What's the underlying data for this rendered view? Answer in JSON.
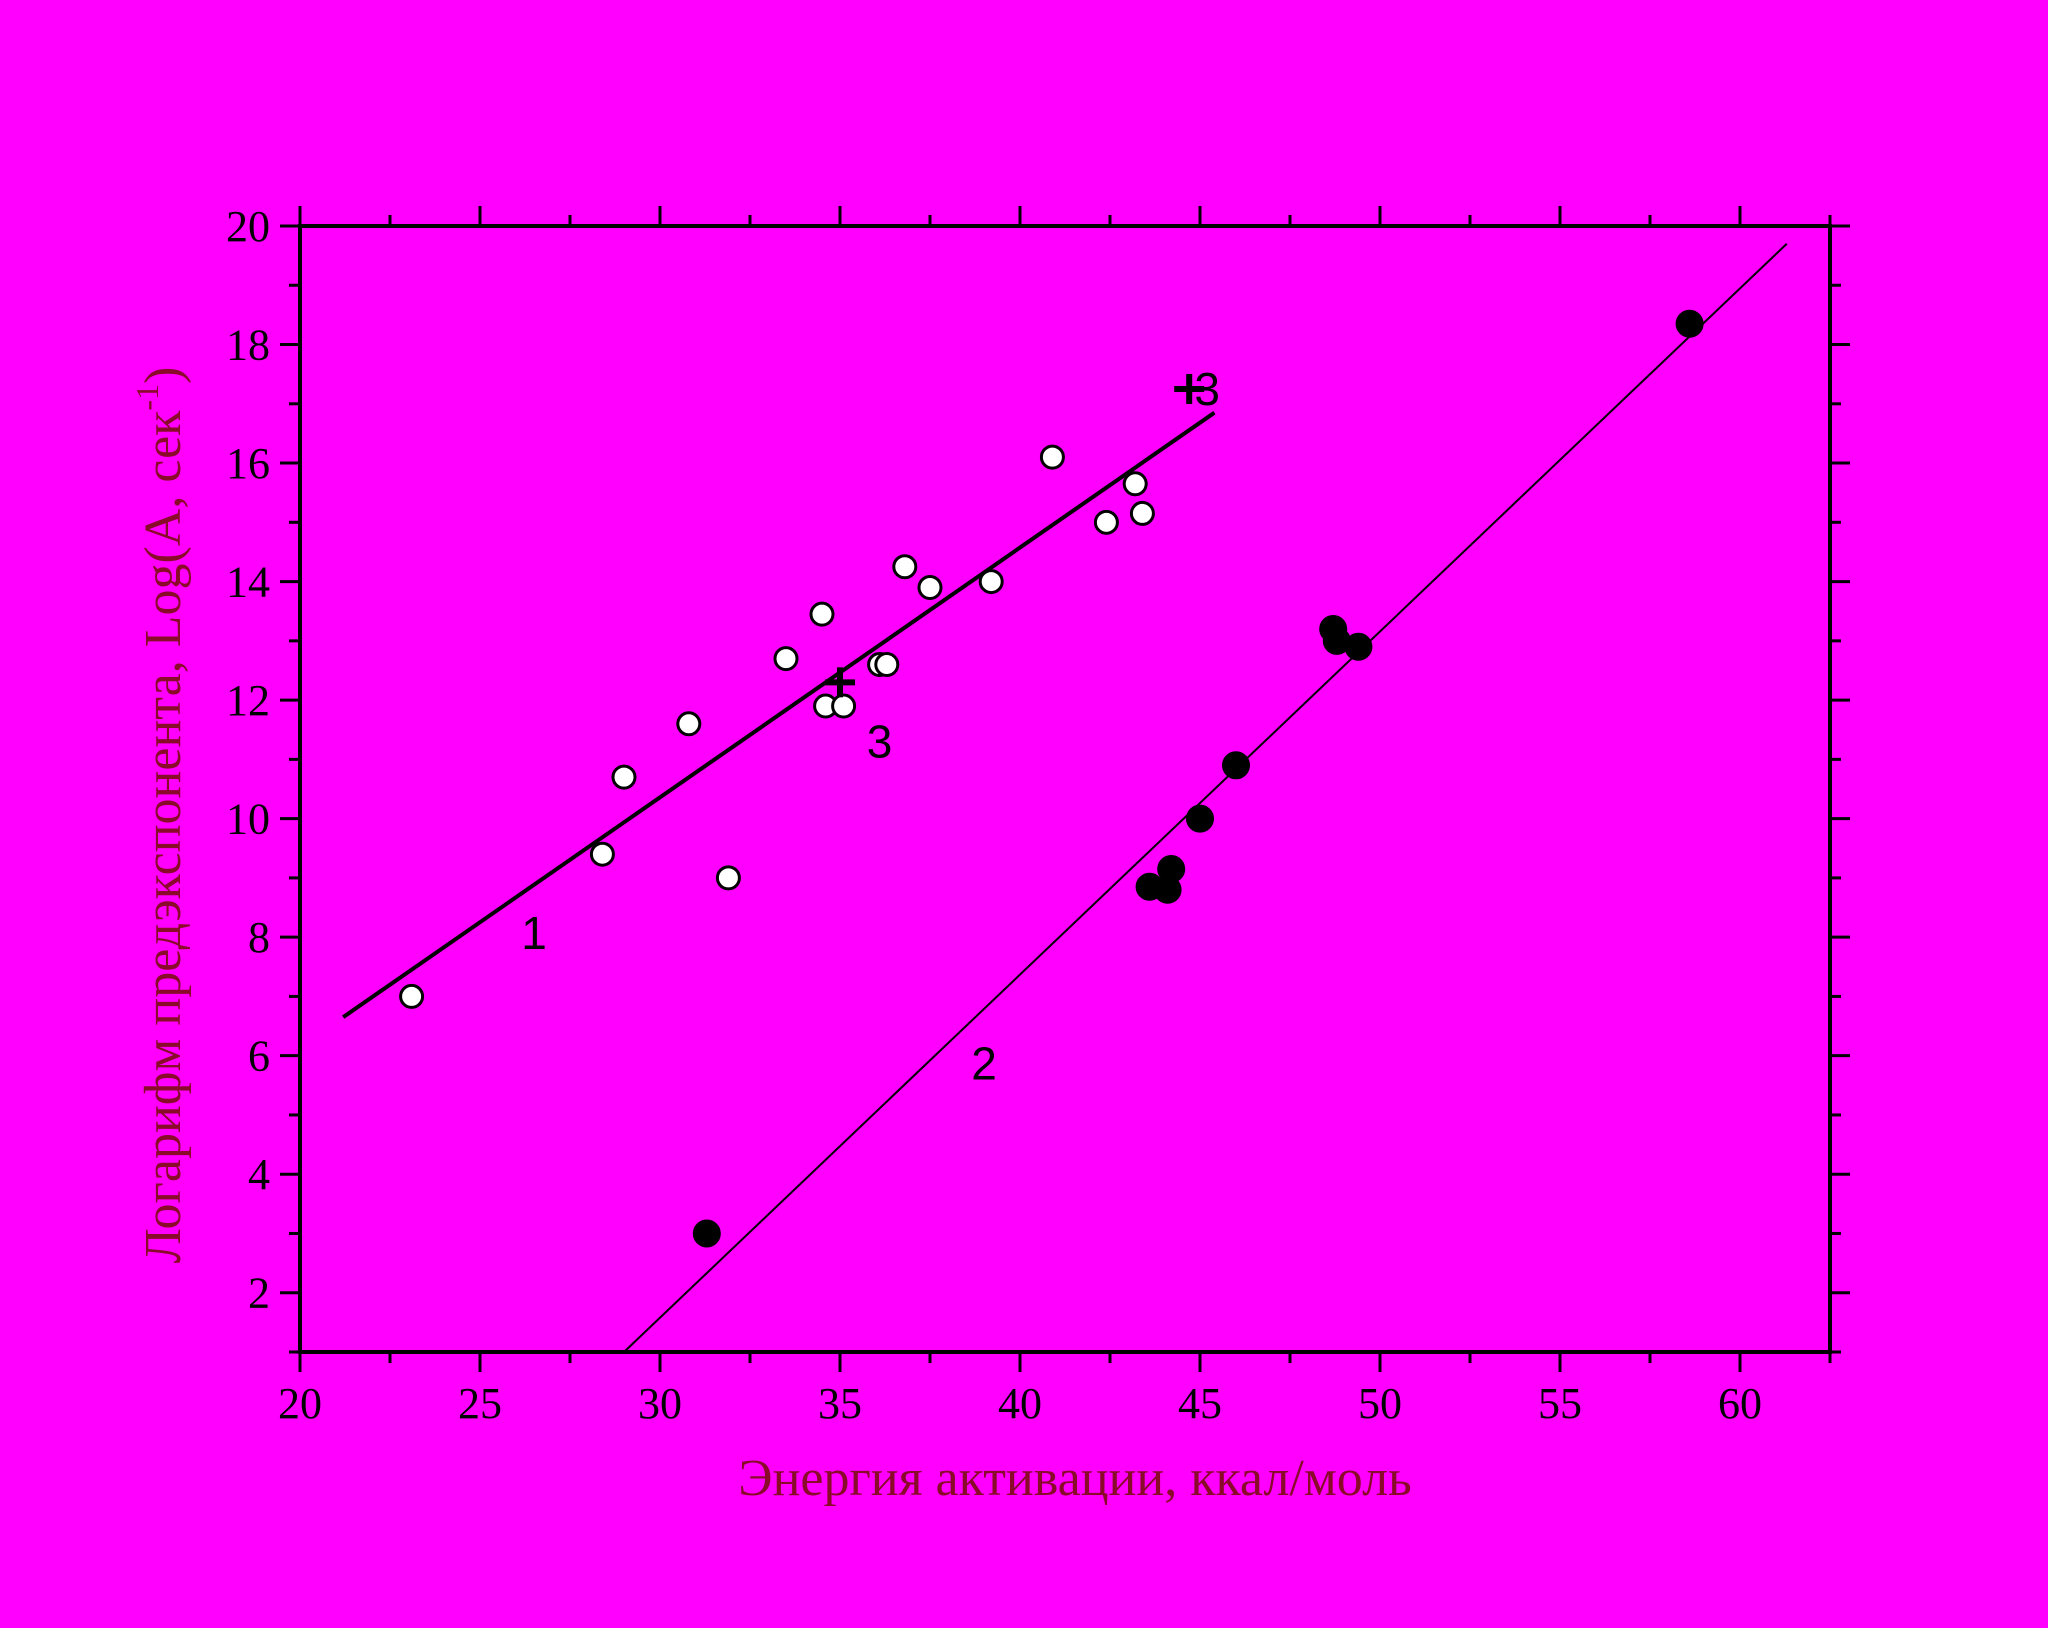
{
  "chart_data": {
    "type": "scatter",
    "xlabel": "Энергия активации, ккал/моль",
    "ylabel": "Логарифм предэкспонента, Log(A, сек",
    "ylabel_sup": "-1",
    "ylabel_close": ")",
    "xlim": [
      20,
      62.5
    ],
    "ylim": [
      1,
      20
    ],
    "x_ticks": [
      20,
      25,
      30,
      35,
      40,
      45,
      50,
      55,
      60
    ],
    "y_ticks": [
      2,
      4,
      6,
      8,
      10,
      12,
      14,
      16,
      18,
      20
    ],
    "grid": false,
    "colors": {
      "background": "#ff00ff",
      "ink": "#000000",
      "title": "#8a0a2a",
      "open_marker_fill": "#ffffff"
    },
    "series": [
      {
        "label": "1",
        "marker": "open-circle",
        "points": [
          [
            23.1,
            7.0
          ],
          [
            28.4,
            9.4
          ],
          [
            29.0,
            10.7
          ],
          [
            30.8,
            11.6
          ],
          [
            31.9,
            9.0
          ],
          [
            33.5,
            12.7
          ],
          [
            34.5,
            13.45
          ],
          [
            34.6,
            11.9
          ],
          [
            35.1,
            11.9
          ],
          [
            36.1,
            12.6
          ],
          [
            36.3,
            12.6
          ],
          [
            36.8,
            14.25
          ],
          [
            37.5,
            13.9
          ],
          [
            39.2,
            14.0
          ],
          [
            40.9,
            16.1
          ],
          [
            42.4,
            15.0
          ],
          [
            43.2,
            15.65
          ],
          [
            43.4,
            15.15
          ]
        ],
        "fit": {
          "x": [
            21.2,
            45.4
          ],
          "y": [
            6.65,
            16.85
          ]
        },
        "label_pos": [
          26.5,
          7.8
        ]
      },
      {
        "label": "2",
        "marker": "filled-circle",
        "points": [
          [
            31.3,
            3.0
          ],
          [
            43.6,
            8.85
          ],
          [
            44.1,
            8.8
          ],
          [
            44.2,
            9.15
          ],
          [
            45.0,
            10.0
          ],
          [
            46.0,
            10.9
          ],
          [
            48.7,
            13.2
          ],
          [
            48.8,
            13.0
          ],
          [
            49.4,
            12.9
          ],
          [
            58.6,
            18.35
          ]
        ],
        "fit": {
          "x": [
            29.0,
            61.3
          ],
          "y": [
            1.0,
            19.7
          ]
        },
        "label_pos": [
          39.0,
          5.6
        ]
      },
      {
        "label": "3",
        "marker": "plus",
        "points": [
          [
            35.0,
            12.3
          ],
          [
            44.7,
            17.25
          ]
        ],
        "label_pos": [
          [
            36.1,
            11.3
          ],
          [
            45.2,
            17.25
          ]
        ]
      }
    ]
  }
}
